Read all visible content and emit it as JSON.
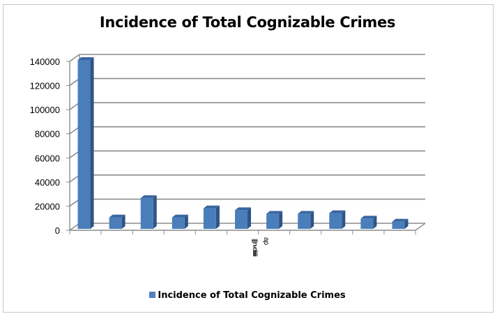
{
  "chart_data": {
    "type": "bar",
    "style": "3d-column",
    "title": "Incidence of Total Cognizable Crimes",
    "xlabel": "",
    "ylabel": "",
    "categories": [
      "",
      "",
      "",
      "",
      "",
      "",
      "",
      "",
      "",
      "",
      ""
    ],
    "series": [
      {
        "name": "Incidence of Total Cognizable Crimes",
        "color": "#4f81bd",
        "values": [
          140000,
          9500,
          25500,
          9500,
          17000,
          15500,
          12500,
          12500,
          13000,
          8500,
          6000
        ]
      }
    ],
    "yticks": [
      "0",
      "20000",
      "40000",
      "60000",
      "80000",
      "100000",
      "120000",
      "140000"
    ],
    "ylim": [
      0,
      140000
    ],
    "grid": true,
    "legend_position": "bottom",
    "annotations": [
      "ap"
    ]
  },
  "title": "Incidence of Total Cognizable Crimes",
  "legend": {
    "label": "Incidence of Total Cognizable Crimes"
  },
  "x_label_fragment": "ap"
}
